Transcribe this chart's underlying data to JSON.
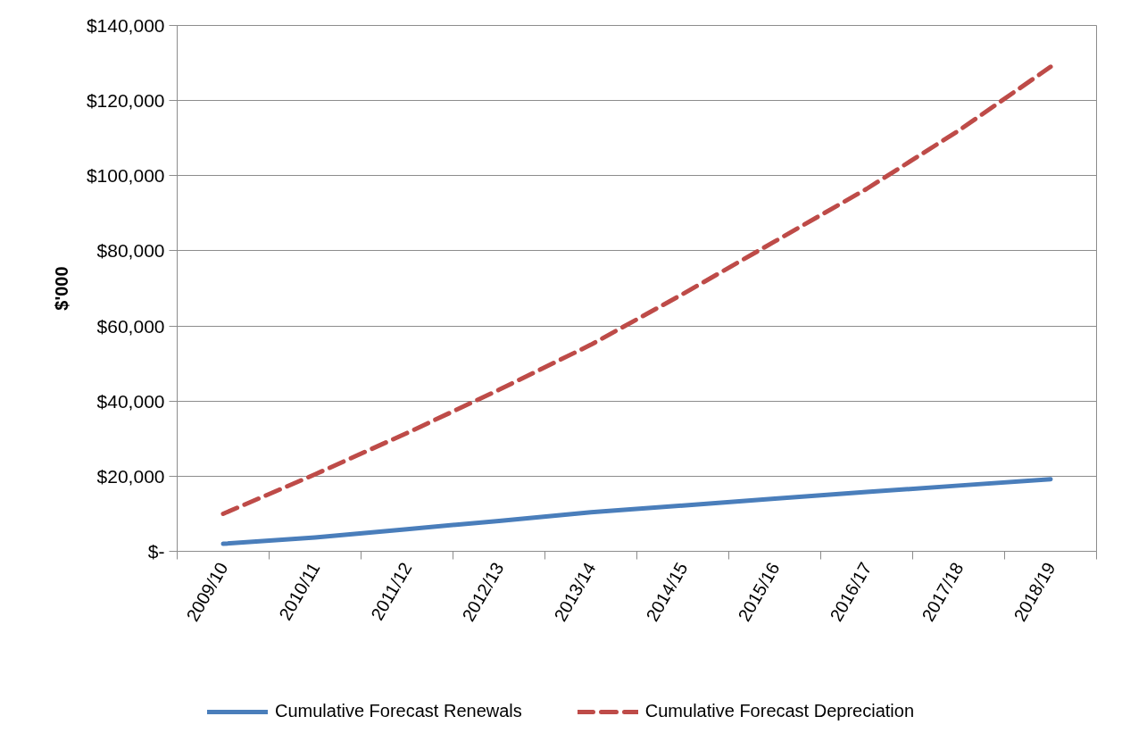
{
  "chart_data": {
    "type": "line",
    "categories": [
      "2009/10",
      "2010/11",
      "2011/12",
      "2012/13",
      "2013/14",
      "2014/15",
      "2015/16",
      "2016/17",
      "2017/18",
      "2018/19"
    ],
    "ylabel": "$'000",
    "series": [
      {
        "name": "Cumulative Forecast Renewals",
        "color": "#4a7ebb",
        "line_style": "solid",
        "values": [
          2000,
          3700,
          5900,
          8100,
          10400,
          12200,
          14000,
          15800,
          17500,
          19200
        ]
      },
      {
        "name": "Cumulative Forecast Depreciation",
        "color": "#be4b48",
        "line_style": "dashed",
        "values": [
          10000,
          20500,
          31500,
          43000,
          55000,
          68500,
          82500,
          96500,
          112000,
          129000
        ]
      }
    ],
    "ylim": [
      0,
      140000
    ],
    "yticks": [
      {
        "value": 0,
        "label": "$-"
      },
      {
        "value": 20000,
        "label": "$20,000"
      },
      {
        "value": 40000,
        "label": "$40,000"
      },
      {
        "value": 60000,
        "label": "$60,000"
      },
      {
        "value": 80000,
        "label": "$80,000"
      },
      {
        "value": 100000,
        "label": "$100,000"
      },
      {
        "value": 120000,
        "label": "$120,000"
      },
      {
        "value": 140000,
        "label": "$140,000"
      }
    ],
    "grid": "y",
    "legend": "bottom"
  }
}
